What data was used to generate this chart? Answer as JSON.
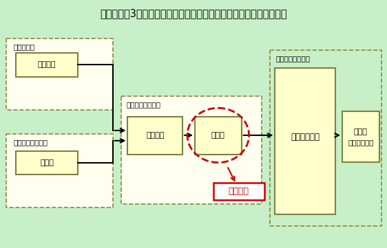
{
  "title": "伊方発電所3号機　総合排水処理装置建屋火災報知機監視系統概略図",
  "bg_color": "#c8f0c8",
  "title_fontsize": 10.5,
  "label_集合作業場": "集合作業場",
  "label_取水ピット電気室": "取水ビット電気室",
  "label_総合排水処理装置": "総合排水処理装置",
  "label_3号機中央制御室": "３号機中央制御室",
  "label_受信機盤_left": "受信機盤",
  "label_総合盤": "総合盤",
  "label_受信機盤_center": "受信機盤",
  "label_中継器": "中継器",
  "label_火災報知盤": "火災報知樏盤",
  "label_電気盤_line1": "電気盤",
  "label_電気盤_line2": "（一括警報）",
  "label_当該箇所": "当該箇所",
  "box_fill": "#ffffcc",
  "box_edge": "#808040",
  "dashed_edge": "#808040",
  "arrow_color": "#000000",
  "red_color": "#cc0000"
}
